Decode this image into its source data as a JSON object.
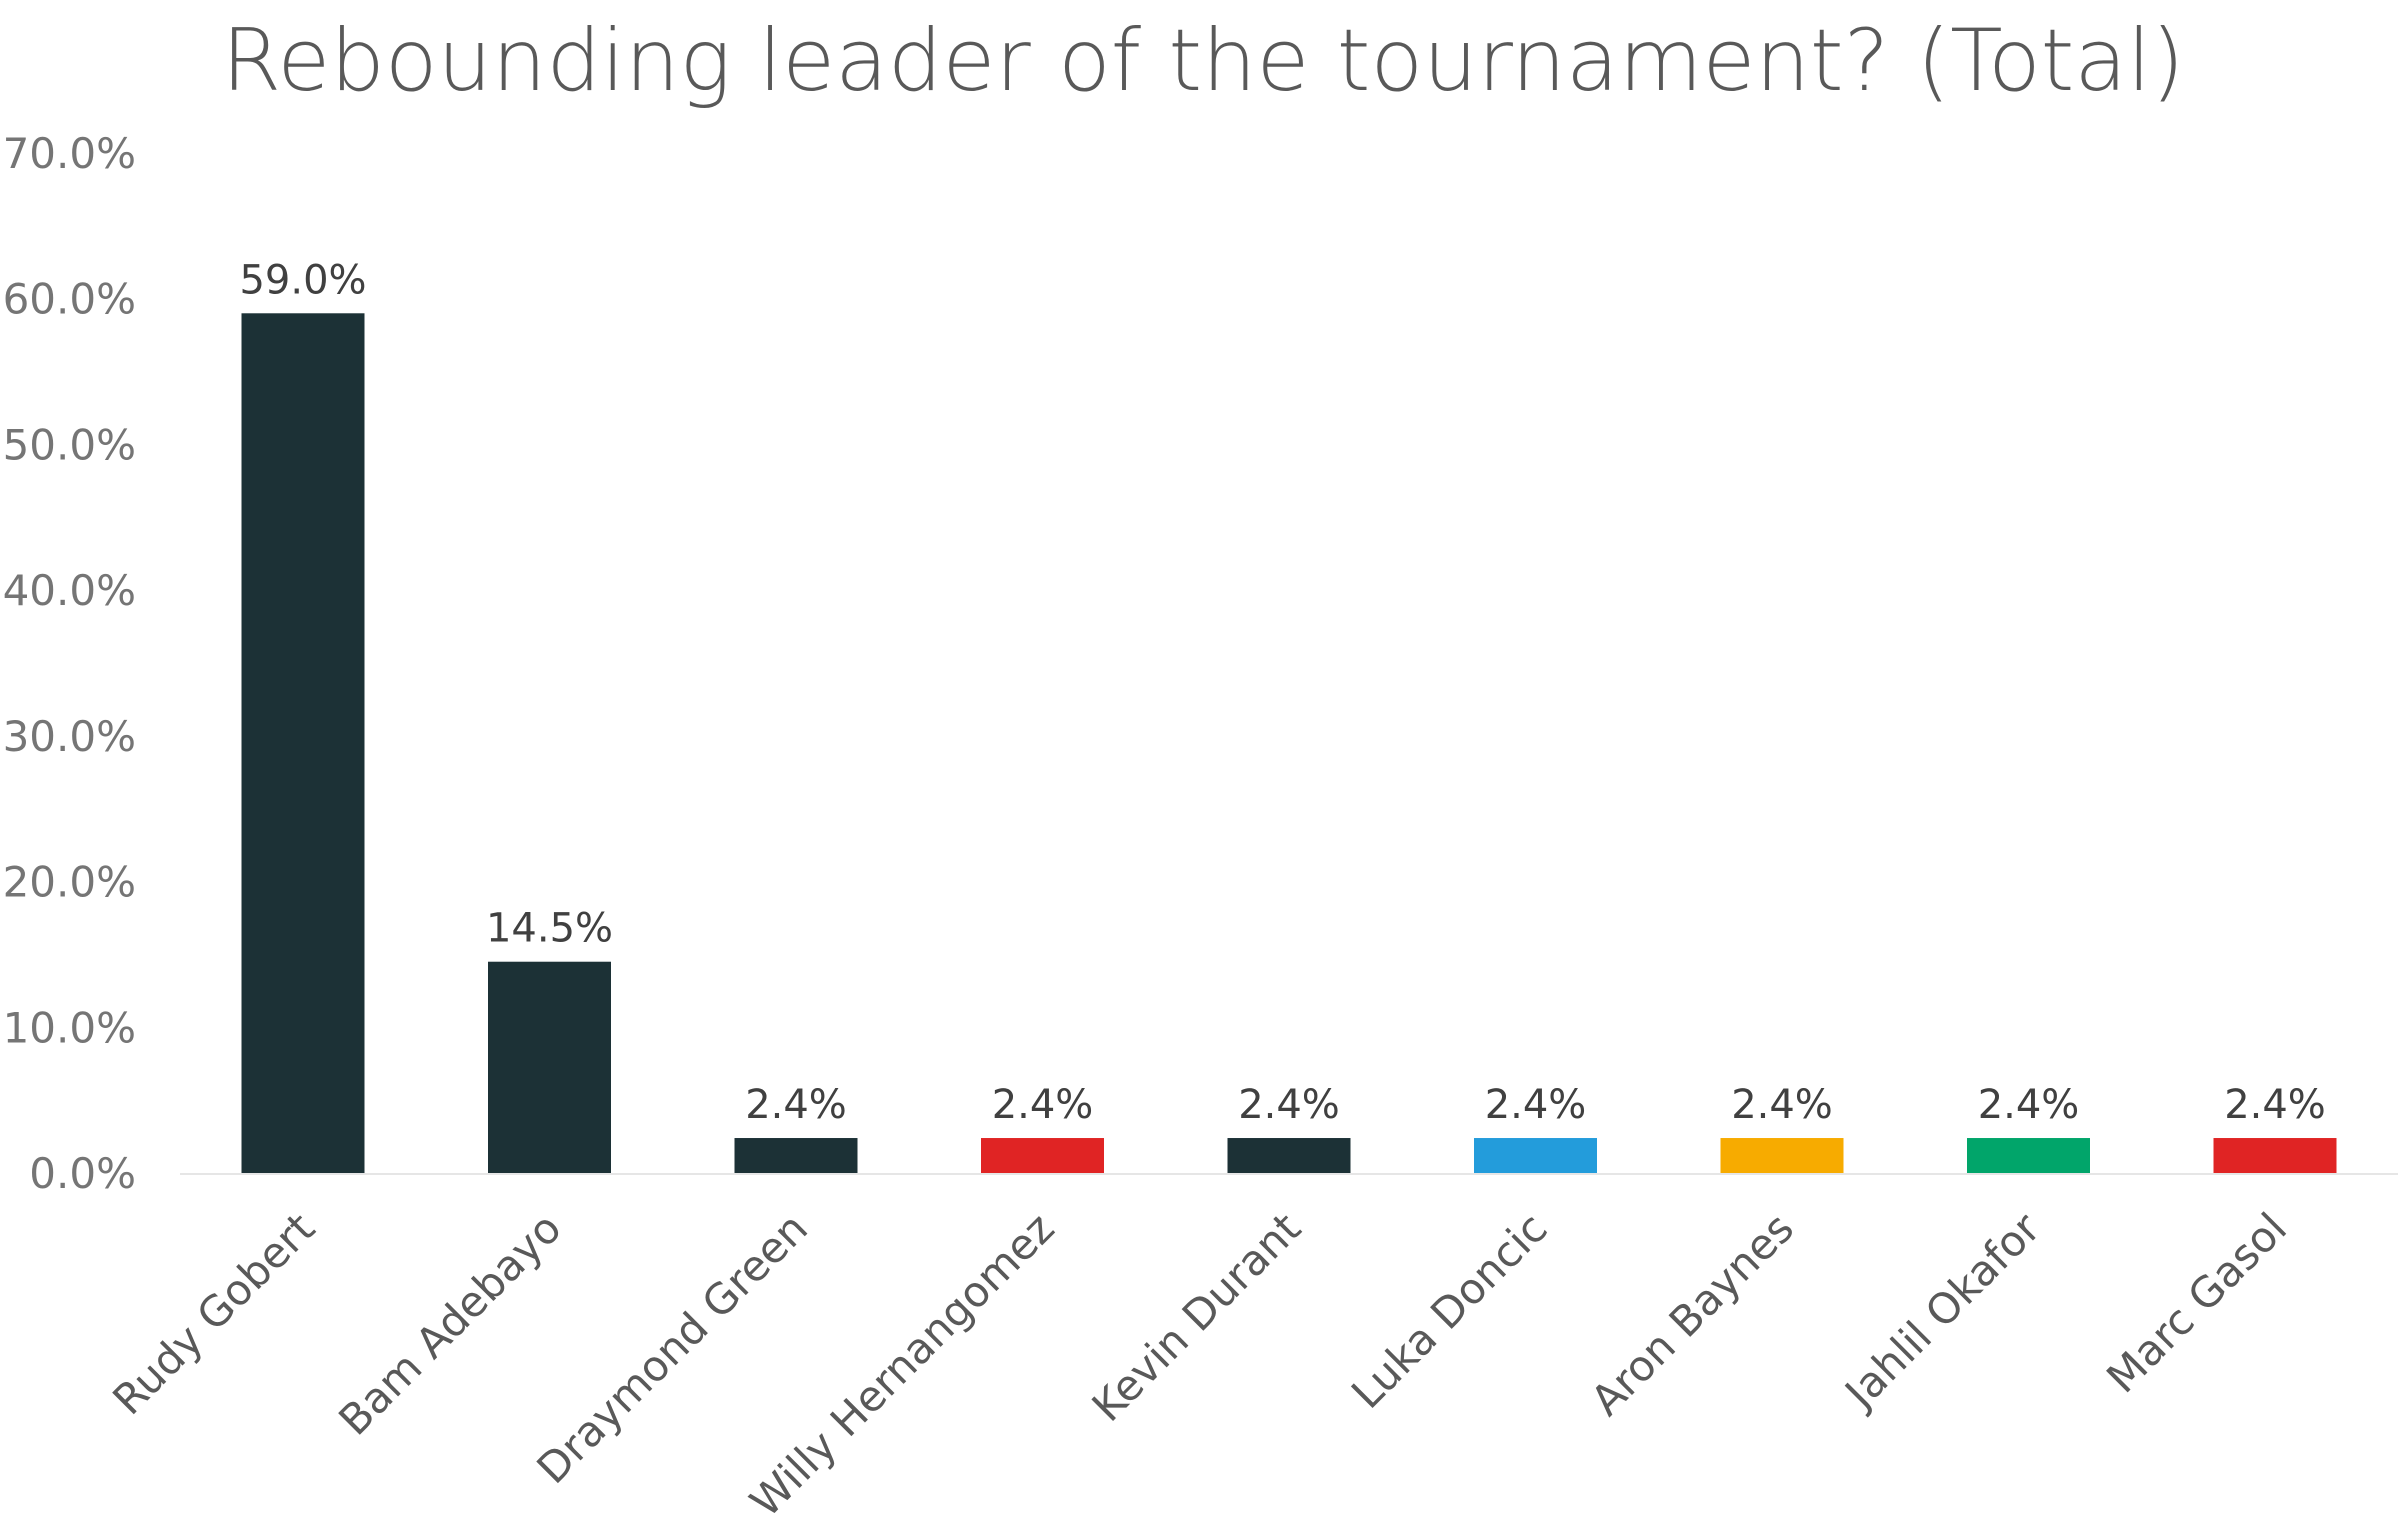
{
  "chart_data": {
    "type": "bar",
    "title": "Rebounding leader of the tournament? (Total)",
    "xlabel": "",
    "ylabel": "",
    "ylim": [
      0,
      70
    ],
    "yticks": [
      "0.0%",
      "10.0%",
      "20.0%",
      "30.0%",
      "40.0%",
      "50.0%",
      "60.0%",
      "70.0%"
    ],
    "grid": false,
    "legend": "none",
    "categories": [
      "Rudy Gobert",
      "Bam Adebayo",
      "Draymond Green",
      "Willy Hernangomez",
      "Kevin Durant",
      "Luka Doncic",
      "Aron Baynes",
      "Jahlil Okafor",
      "Marc Gasol"
    ],
    "values": [
      59.0,
      14.5,
      2.4,
      2.4,
      2.4,
      2.4,
      2.4,
      2.4,
      2.4
    ],
    "data_labels": [
      "59.0%",
      "14.5%",
      "2.4%",
      "2.4%",
      "2.4%",
      "2.4%",
      "2.4%",
      "2.4%",
      "2.4%"
    ],
    "colors": [
      "#1c3136",
      "#1c3136",
      "#1c3136",
      "#e02424",
      "#1c3136",
      "#239cdb",
      "#f7ab00",
      "#01a56a",
      "#e02424"
    ],
    "axis_color": "#e6e6e6"
  }
}
